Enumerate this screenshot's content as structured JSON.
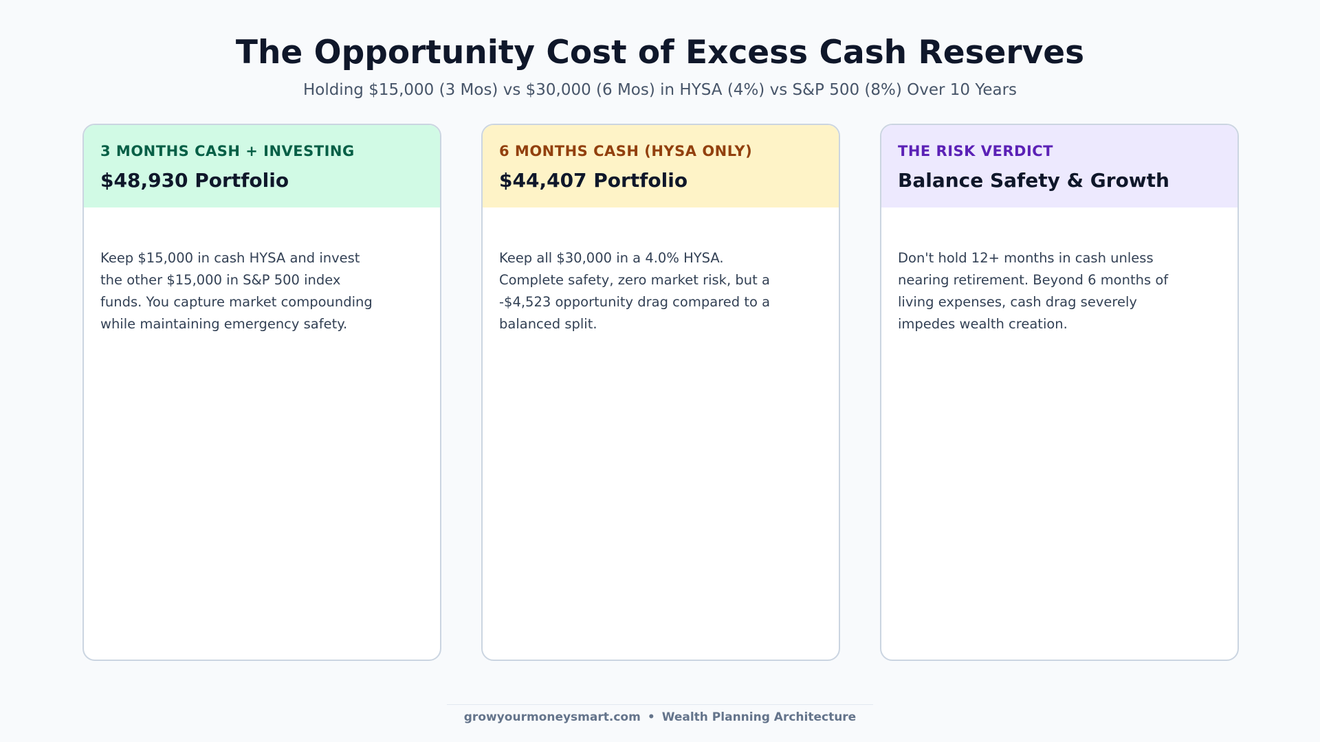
{
  "header": {
    "title": "The Opportunity Cost of Excess Cash Reserves",
    "subtitle": "Holding $15,000 (3 Mos) vs $30,000 (6 Mos) in HYSA (4%) vs S&P 500 (8%) Over 10 Years"
  },
  "cards": [
    {
      "label": "3 MONTHS CASH + INVESTING",
      "heading": "$48,930 Portfolio",
      "body": "Keep $15,000 in cash HYSA and invest the other $15,000 in S&P 500 index funds. You capture market compounding while maintaining emergency safety.",
      "accent": "#065f46",
      "header_bg": "#d1fae5"
    },
    {
      "label": "6 MONTHS CASH (HYSA ONLY)",
      "heading": "$44,407 Portfolio",
      "body": "Keep all $30,000 in a 4.0% HYSA. Complete safety, zero market risk, but a -$4,523 opportunity drag compared to a balanced split.",
      "accent": "#92400e",
      "header_bg": "#fef3c7"
    },
    {
      "label": "THE RISK VERDICT",
      "heading": "Balance Safety & Growth",
      "body": "Don't hold 12+ months in cash unless nearing retirement. Beyond 6 months of living expenses, cash drag severely impedes wealth creation.",
      "accent": "#5b21b6",
      "header_bg": "#ede9fe"
    }
  ],
  "footer": {
    "site": "growyourmoneysmart.com",
    "separator": "•",
    "tagline": "Wealth Planning Architecture"
  }
}
